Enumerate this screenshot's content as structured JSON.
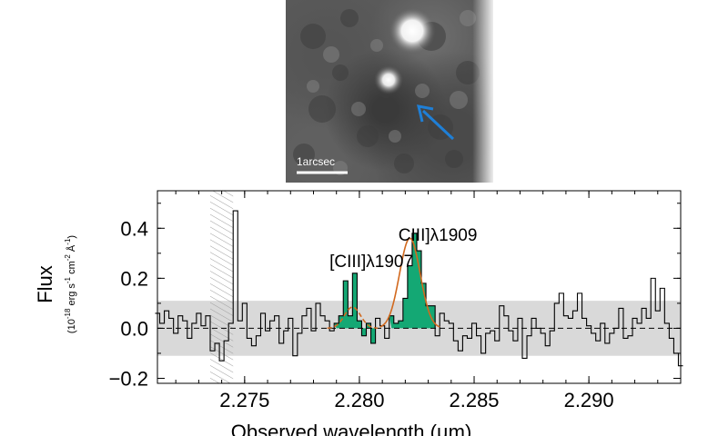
{
  "image": {
    "scale_bar_label": "1arcsec",
    "arrow_color": "#1f7fd6"
  },
  "chart_data": {
    "type": "line",
    "xlabel": "Observed wavelength (µm)",
    "ylabel": "Flux",
    "ylabel_units_prefix": "(10",
    "ylabel_units_exp": "-18",
    "ylabel_units_rest": " erg s",
    "ylabel_units_s_exp": "-1",
    "ylabel_units_cm": " cm",
    "ylabel_units_cm_exp": "-2",
    "ylabel_units_A": " Å",
    "ylabel_units_A_exp": "-1",
    "ylabel_units_close": ")",
    "xlim": [
      2.2712,
      2.294
    ],
    "ylim": [
      -0.22,
      0.55
    ],
    "x_ticks": [
      2.275,
      2.28,
      2.285,
      2.29
    ],
    "x_tick_labels": [
      "2.275",
      "2.280",
      "2.285",
      "2.290"
    ],
    "y_ticks": [
      -0.2,
      0.0,
      0.2,
      0.4
    ],
    "y_tick_labels": [
      "−0.2",
      "0.0",
      "0.2",
      "0.4"
    ],
    "annotations": [
      {
        "text": "[CIII]λ1907",
        "x": 2.2787,
        "y": 0.245
      },
      {
        "text": "CIII]λ1909",
        "x": 2.2817,
        "y": 0.35
      }
    ],
    "masked_region": [
      2.2735,
      2.2745
    ],
    "noise_band": {
      "low": -0.11,
      "high": 0.11
    },
    "colors": {
      "spectrum": "#000000",
      "fill": "#14a874",
      "fit": "#d2691e",
      "noise_band": "#d9d9d9",
      "hatch": "#9e9e9e"
    },
    "series": [
      {
        "x": [
          2.2712,
          2.2714,
          2.2716,
          2.2718,
          2.272,
          2.2722,
          2.2724,
          2.2726,
          2.2728,
          2.273,
          2.2732,
          2.2734,
          2.2736,
          2.2738,
          2.274,
          2.2742,
          2.2744,
          2.2746,
          2.2748,
          2.275,
          2.2752,
          2.2754,
          2.2756,
          2.2758,
          2.276,
          2.2762,
          2.2764,
          2.2766,
          2.2768,
          2.277,
          2.2772,
          2.2774,
          2.2776,
          2.2778,
          2.278,
          2.2782,
          2.2784,
          2.2786,
          2.2788,
          2.279,
          2.2792,
          2.2794,
          2.2796,
          2.2798,
          2.28,
          2.2802,
          2.2804,
          2.2806,
          2.2808,
          2.281,
          2.2812,
          2.2814,
          2.2816,
          2.2818,
          2.282,
          2.2822,
          2.2824,
          2.2826,
          2.2828,
          2.283,
          2.2832,
          2.2834,
          2.2836,
          2.2838,
          2.284,
          2.2842,
          2.2844,
          2.2846,
          2.2848,
          2.285,
          2.2852,
          2.2854,
          2.2856,
          2.2858,
          2.286,
          2.2862,
          2.2864,
          2.2866,
          2.2868,
          2.287,
          2.2872,
          2.2874,
          2.2876,
          2.2878,
          2.288,
          2.2882,
          2.2884,
          2.2886,
          2.2888,
          2.289,
          2.2892,
          2.2894,
          2.2896,
          2.2898,
          2.29,
          2.2902,
          2.2904,
          2.2906,
          2.2908,
          2.291,
          2.2912,
          2.2914,
          2.2916,
          2.2918,
          2.292,
          2.2922,
          2.2924,
          2.2926,
          2.2928,
          2.293,
          2.2932,
          2.2934,
          2.2936,
          2.2938,
          2.294
        ],
        "y": [
          0.06,
          0.02,
          0.07,
          0.04,
          -0.02,
          0.05,
          0.03,
          -0.04,
          0.02,
          0.06,
          0.01,
          0.05,
          -0.09,
          -0.06,
          -0.13,
          -0.05,
          0.02,
          0.47,
          0.03,
          0.1,
          -0.04,
          -0.07,
          -0.03,
          0.06,
          -0.01,
          0.03,
          0.05,
          -0.06,
          -0.01,
          0.04,
          -0.11,
          -0.02,
          0.05,
          0.08,
          -0.01,
          0.1,
          0.05,
          0.03,
          -0.01,
          0.02,
          0.05,
          0.19,
          0.05,
          0.22,
          0.03,
          -0.03,
          0.02,
          -0.06,
          0.04,
          0.01,
          -0.04,
          0.05,
          0.02,
          0.03,
          0.12,
          0.25,
          0.38,
          0.31,
          0.18,
          0.09,
          0.09,
          -0.03,
          0.06,
          0.03,
          0.02,
          -0.05,
          -0.09,
          -0.03,
          -0.04,
          0.02,
          -0.03,
          -0.1,
          -0.02,
          -0.01,
          -0.05,
          0.09,
          0.05,
          -0.01,
          -0.05,
          0.04,
          -0.12,
          -0.03,
          0.04,
          0.0,
          -0.02,
          -0.07,
          -0.01,
          0.1,
          0.14,
          0.05,
          0.04,
          0.07,
          0.14,
          0.04,
          0.01,
          -0.02,
          -0.05,
          0.02,
          -0.06,
          -0.02,
          0.0,
          0.08,
          -0.04,
          -0.03,
          0.04,
          0.02,
          0.08,
          0.04,
          0.2,
          0.07,
          0.16,
          0.02,
          -0.04,
          -0.1,
          -0.15
        ]
      }
    ],
    "fills": [
      {
        "x_start": 2.279,
        "x_end": 2.2806
      },
      {
        "x_start": 2.2814,
        "x_end": 2.2832
      }
    ],
    "fit_curves": [
      {
        "center": 2.2797,
        "amp": 0.085,
        "sigma": 0.00035,
        "x_start": 2.2786,
        "x_end": 2.2808
      },
      {
        "center": 2.2822,
        "amp": 0.36,
        "sigma": 0.00045,
        "x_start": 2.2809,
        "x_end": 2.2835
      }
    ]
  }
}
